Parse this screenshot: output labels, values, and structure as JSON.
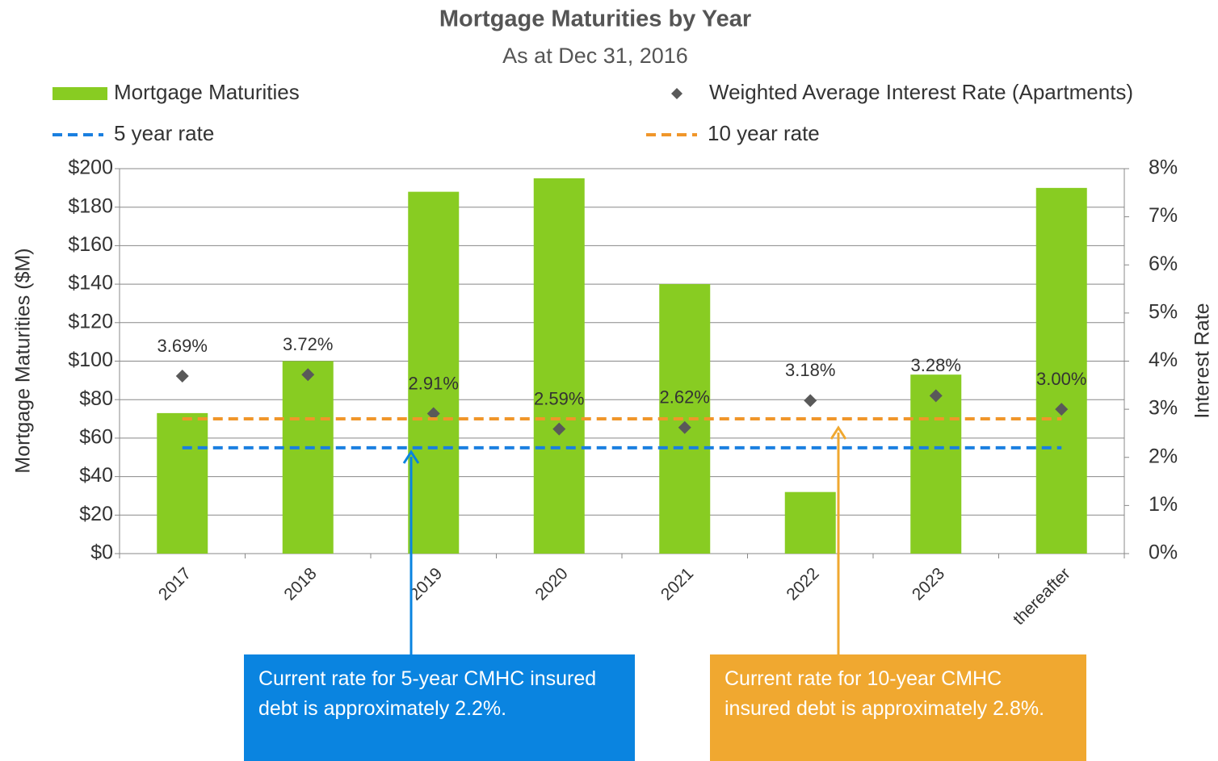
{
  "chart_data": {
    "type": "bar",
    "title": "Mortgage Maturities by Year",
    "subtitle": "As at Dec 31, 2016",
    "categories": [
      "2017",
      "2018",
      "2019",
      "2020",
      "2021",
      "2022",
      "2023",
      "thereafter"
    ],
    "series": [
      {
        "name": "Mortgage Maturities",
        "type": "bar",
        "color": "#88cc22",
        "values": [
          73,
          100,
          188,
          195,
          140,
          32,
          93,
          190
        ]
      },
      {
        "name": "Weighted Average Interest Rate (Apartments)",
        "type": "scatter",
        "axis": "y2",
        "color": "#595959",
        "values": [
          3.69,
          3.72,
          2.91,
          2.59,
          2.62,
          3.18,
          3.28,
          3.0
        ],
        "value_labels": [
          "3.69%",
          "3.72%",
          "2.91%",
          "2.59%",
          "2.62%",
          "3.18%",
          "3.28%",
          "3.00%"
        ]
      },
      {
        "name": "5 year rate",
        "type": "line",
        "dashed": true,
        "axis": "y2",
        "color": "#1a7fe0",
        "values": [
          2.2,
          2.2,
          2.2,
          2.2,
          2.2,
          2.2,
          2.2,
          2.2
        ]
      },
      {
        "name": "10 year rate",
        "type": "line",
        "dashed": true,
        "axis": "y2",
        "color": "#f0962a",
        "values": [
          2.8,
          2.8,
          2.8,
          2.8,
          2.8,
          2.8,
          2.8,
          2.8
        ]
      }
    ],
    "ylabel": "Mortgage Maturities ($M)",
    "y2label": "Interest Rate",
    "ylim": [
      0,
      200
    ],
    "yticks": [
      {
        "value": 0,
        "label": "$0"
      },
      {
        "value": 20,
        "label": "$20"
      },
      {
        "value": 40,
        "label": "$40"
      },
      {
        "value": 60,
        "label": "$60"
      },
      {
        "value": 80,
        "label": "$80"
      },
      {
        "value": 100,
        "label": "$100"
      },
      {
        "value": 120,
        "label": "$120"
      },
      {
        "value": 140,
        "label": "$140"
      },
      {
        "value": 160,
        "label": "$160"
      },
      {
        "value": 180,
        "label": "$180"
      },
      {
        "value": 200,
        "label": "$200"
      }
    ],
    "y2lim": [
      0,
      8
    ],
    "y2ticks": [
      {
        "value": 0,
        "label": "0%"
      },
      {
        "value": 1,
        "label": "1%"
      },
      {
        "value": 2,
        "label": "2%"
      },
      {
        "value": 3,
        "label": "3%"
      },
      {
        "value": 4,
        "label": "4%"
      },
      {
        "value": 5,
        "label": "5%"
      },
      {
        "value": 6,
        "label": "6%"
      },
      {
        "value": 7,
        "label": "7%"
      },
      {
        "value": 8,
        "label": "8%"
      }
    ],
    "grid": true,
    "annotations": [
      {
        "text": "Current rate for 5-year CMHC insured debt is approximately 2.2%.",
        "color": "#0a84e0"
      },
      {
        "text": "Current rate for 10-year CMHC insured debt is approximately 2.8%.",
        "color": "#f0a830"
      }
    ]
  }
}
